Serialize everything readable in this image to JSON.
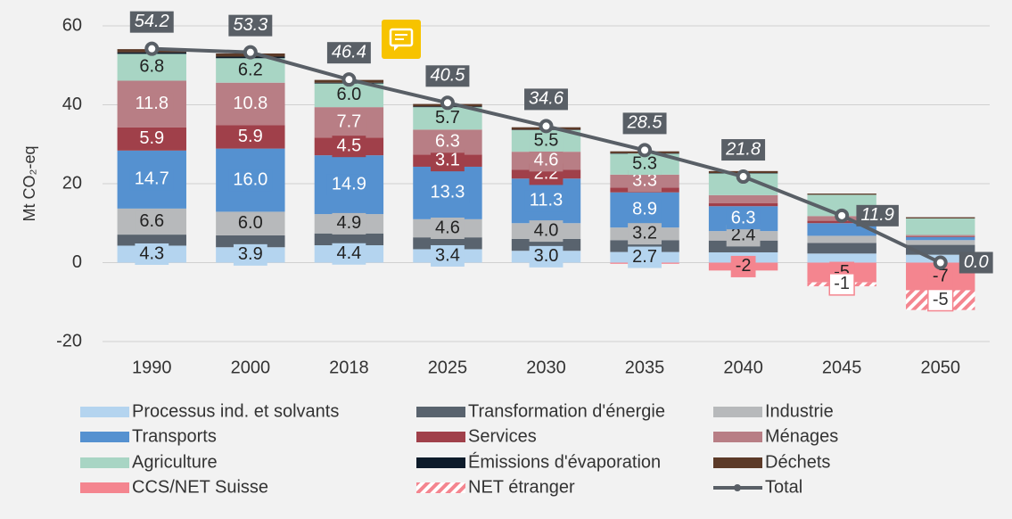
{
  "chart_data": {
    "type": "stacked-bar-line",
    "ylabel": "Mt CO₂-eq",
    "categories": [
      "1990",
      "2000",
      "2018",
      "2025",
      "2030",
      "2035",
      "2040",
      "2045",
      "2050"
    ],
    "ylim": [
      -20,
      60
    ],
    "yticks": [
      -20,
      0,
      20,
      40,
      60
    ],
    "grid": true,
    "series": [
      {
        "name": "Processus ind. et solvants",
        "color": "#b4d4ef",
        "values": [
          4.3,
          3.9,
          4.4,
          3.4,
          3.0,
          2.7,
          2.6,
          2.3,
          2.0
        ],
        "value_labels": [
          "4.3",
          "3.9",
          "4.4",
          "3.4",
          "3.0",
          "2.7",
          null,
          null,
          null
        ]
      },
      {
        "name": "Transformation d'énergie",
        "color": "#59636e",
        "values": [
          2.8,
          3.0,
          3.0,
          3.0,
          3.0,
          3.0,
          3.0,
          2.7,
          2.5
        ]
      },
      {
        "name": "Industrie",
        "color": "#b7b9bb",
        "values": [
          6.6,
          6.0,
          4.9,
          4.6,
          4.0,
          3.2,
          2.4,
          1.8,
          1.2
        ],
        "value_labels": [
          "6.6",
          "6.0",
          "4.9",
          "4.6",
          "4.0",
          "3.2",
          "2.4",
          null,
          null
        ]
      },
      {
        "name": "Transports",
        "color": "#5591d0",
        "values": [
          14.7,
          16.0,
          14.9,
          13.3,
          11.3,
          8.9,
          6.3,
          3.2,
          0.8
        ],
        "value_labels": [
          "14.7",
          "16.0",
          "14.9",
          "13.3",
          "11.3",
          "8.9",
          "6.3",
          null,
          null
        ]
      },
      {
        "name": "Services",
        "color": "#a0404a",
        "values": [
          5.9,
          5.9,
          4.5,
          3.1,
          2.2,
          1.2,
          0.8,
          0.6,
          0.2
        ],
        "value_labels": [
          "5.9",
          "5.9",
          "4.5",
          "3.1",
          "2.2",
          null,
          null,
          null,
          null
        ]
      },
      {
        "name": "Ménages",
        "color": "#b87e85",
        "values": [
          11.8,
          10.8,
          7.7,
          6.3,
          4.6,
          3.3,
          2.0,
          1.2,
          0.3
        ],
        "value_labels": [
          "11.8",
          "10.8",
          "7.7",
          "6.3",
          "4.6",
          "3.3",
          null,
          null,
          null
        ]
      },
      {
        "name": "Agriculture",
        "color": "#a8d5c4",
        "values": [
          6.8,
          6.2,
          6.0,
          5.7,
          5.5,
          5.3,
          5.5,
          5.4,
          4.2
        ],
        "value_labels": [
          "6.8",
          "6.2",
          "6.0",
          "5.7",
          "5.5",
          "5.3",
          null,
          null,
          null
        ]
      },
      {
        "name": "Émissions d'évaporation",
        "color": "#0d1b2a",
        "values": [
          0.4,
          0.4,
          0.2,
          0.2,
          0.1,
          0.1,
          0.1,
          0,
          0
        ]
      },
      {
        "name": "Déchets",
        "color": "#5c3a28",
        "values": [
          0.8,
          0.8,
          0.7,
          0.6,
          0.6,
          0.5,
          0.5,
          0.3,
          0.3
        ]
      },
      {
        "name": "CCS/NET Suisse",
        "color": "#f4858f",
        "values": [
          0,
          0,
          0,
          0,
          0,
          -0.3,
          -2,
          -5,
          -7
        ],
        "value_labels": [
          null,
          null,
          null,
          null,
          null,
          null,
          "-2",
          "-5",
          "-7"
        ]
      },
      {
        "name": "NET étranger",
        "color": "#f4858f",
        "hatch": true,
        "values": [
          0,
          0,
          0,
          0,
          0,
          0,
          0,
          -1,
          -5
        ],
        "value_labels": [
          null,
          null,
          null,
          null,
          null,
          null,
          null,
          "-1",
          "-5"
        ]
      },
      {
        "name": "Total",
        "color": "#595f66",
        "type": "line",
        "values": [
          54.2,
          53.3,
          46.4,
          40.5,
          34.6,
          28.5,
          21.8,
          11.9,
          0
        ],
        "value_labels": [
          "54.2",
          "53.3",
          "46.4",
          "40.5",
          "34.6",
          "28.5",
          "21.8",
          "11.9",
          "0.0"
        ]
      }
    ]
  }
}
